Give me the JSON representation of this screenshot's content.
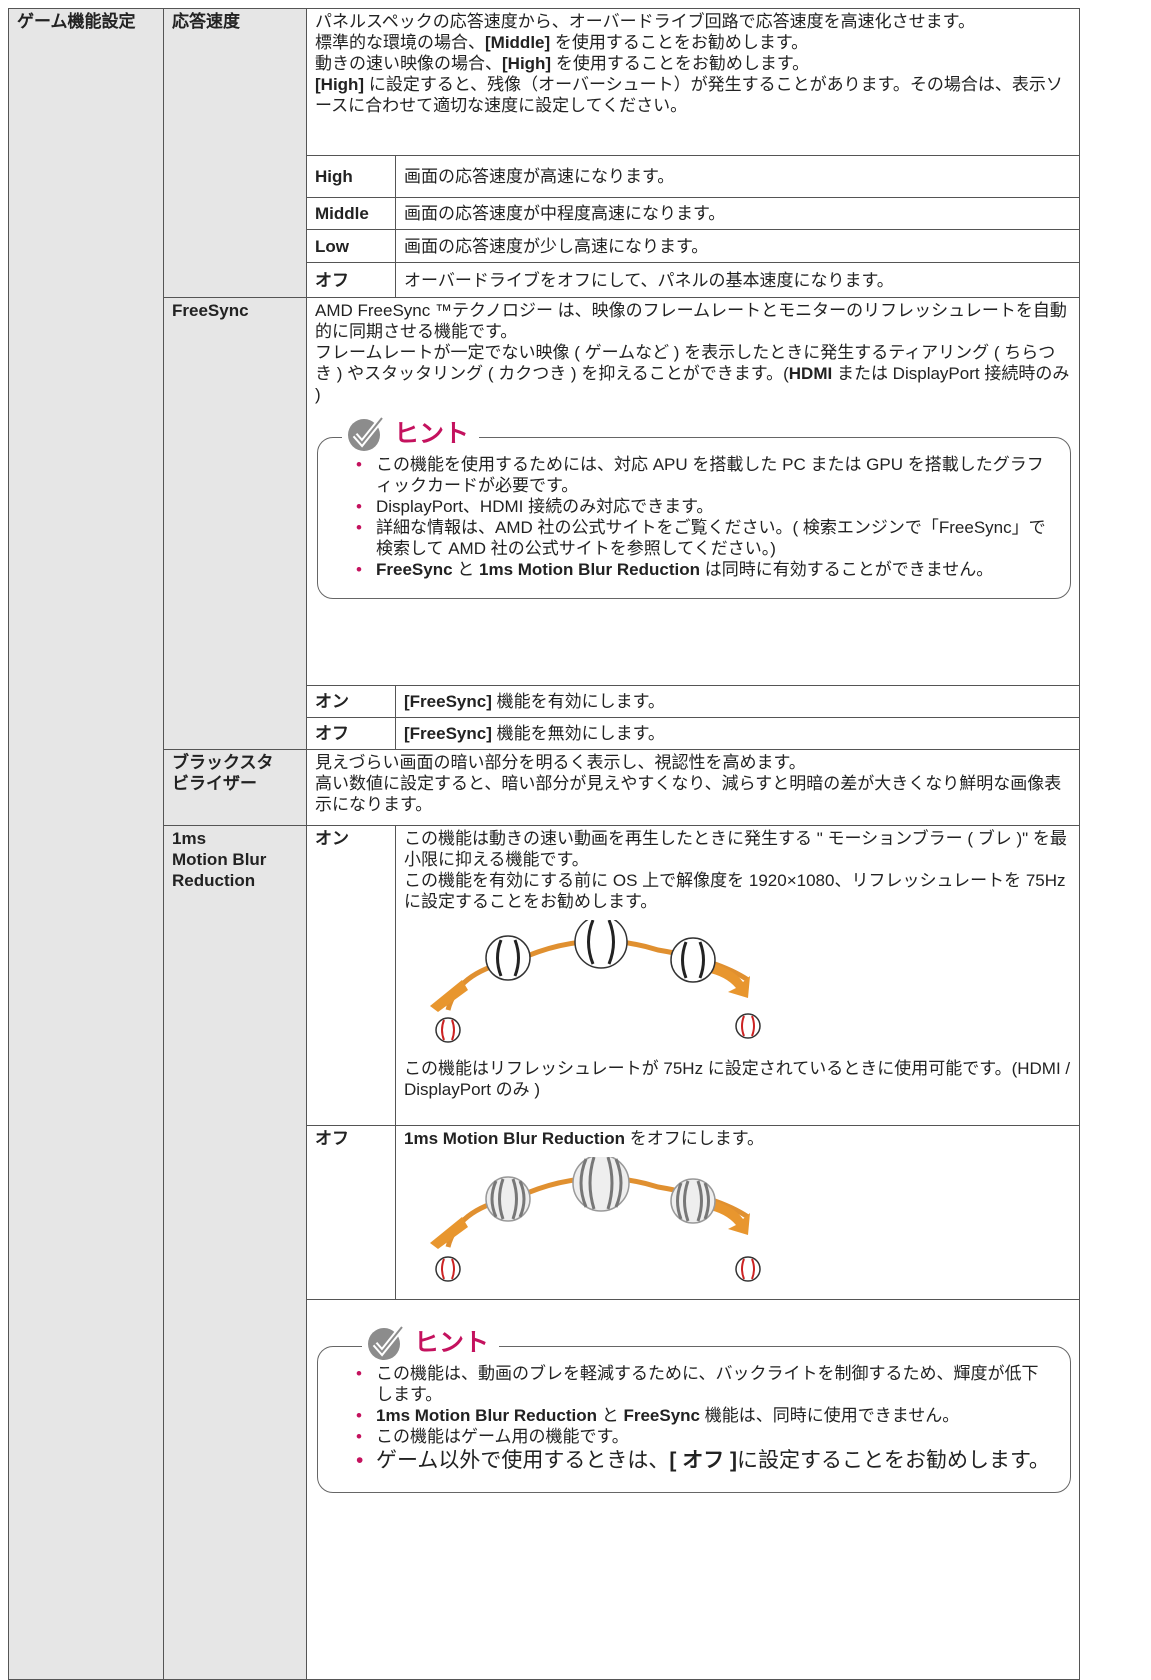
{
  "table": {
    "section": "ゲーム機能設定",
    "rows": [
      {
        "label": "応答速度",
        "description": [
          [
            "パネルスペックの応答速度から、オーバードライブ回路で応答速度を高速化させます。"
          ],
          [
            "標準的な環境の場合、",
            {
              "bold": "[Middle]"
            },
            " を使用することをお勧めします。"
          ],
          [
            "動きの速い映像の場合、",
            {
              "bold": "[High]"
            },
            " を使用することをお勧めします。"
          ],
          [
            {
              "bold": "[High]"
            },
            " に設定すると、残像（オーバーシュート）が発生することがあります。その場合は、表示ソースに合わせて適切な速度に設定してください。"
          ]
        ],
        "options": [
          {
            "name": "High",
            "description": [
              [
                "画面の応答速度が高速になります。"
              ]
            ]
          },
          {
            "name": "Middle",
            "description": [
              [
                "画面の応答速度が中程度高速になります。"
              ]
            ]
          },
          {
            "name": "Low",
            "description": [
              [
                "画面の応答速度が少し高速になります。"
              ]
            ]
          },
          {
            "name": "オフ",
            "description": [
              [
                "オーバードライブをオフにして、パネルの基本速度になります。"
              ]
            ]
          }
        ]
      },
      {
        "label": "FreeSync",
        "description": [
          [
            "AMD FreeSync ™テクノロジー は、映像のフレームレートとモニターのリフレッシュレートを自動的に同期させる機能です。"
          ],
          [
            "フレームレートが一定でない映像 ( ゲームなど ) を表示したときに発生するティアリング ( ちらつき ) やスタッタリング ( カクつき ) を抑えることができます。(",
            {
              "bold": "HDMI"
            },
            " または DisplayPort 接続時のみ )"
          ]
        ],
        "hint": {
          "title": "ヒント",
          "items": [
            [
              "この機能を使用するためには、対応 APU を搭載した PC または GPU を搭載したグラフィックカードが必要です。"
            ],
            [
              "DisplayPort、HDMI 接続のみ対応できます。"
            ],
            [
              "詳細な情報は、AMD 社の公式サイトをご覧ください。( 検索エンジンで「FreeSync」で検索して AMD 社の公式サイトを参照してください。)"
            ],
            [
              {
                "bold": "FreeSync"
              },
              " と ",
              {
                "bold": "1ms Motion Blur Reduction"
              },
              " は同時に有効することができません。"
            ]
          ]
        },
        "options": [
          {
            "name": "オン",
            "description": [
              [
                {
                  "bold": "[FreeSync]"
                },
                " 機能を有効にします。"
              ]
            ]
          },
          {
            "name": "オフ",
            "description": [
              [
                {
                  "bold": "[FreeSync]"
                },
                " 機能を無効にします。"
              ]
            ]
          }
        ]
      },
      {
        "label": "ブラックスタビライザー",
        "description": [
          [
            "見えづらい画面の暗い部分を明るく表示し、視認性を高めます。"
          ],
          [
            "高い数値に設定すると、暗い部分が見えやすくなり、減らすと明暗の差が大きくなり鮮明な画像表示になります。"
          ]
        ]
      },
      {
        "label": [
          "1ms",
          "Motion Blur",
          "Reduction"
        ],
        "options": [
          {
            "name": "オン",
            "description": [
              [
                "この機能は動きの速い動画を再生したときに発生する \" モーションブラー ( ブレ )\" を最小限に抑える機能です。"
              ],
              [
                "この機能を有効にする前に OS 上で解像度を 1920×1080、リフレッシュレートを 75Hz に設定することをお勧めします。"
              ]
            ],
            "note": [
              [
                "この機能はリフレッシュレートが 75Hz に設定されているときに使用可能です。(HDMI / DisplayPort のみ )"
              ]
            ]
          },
          {
            "name": "オフ",
            "description": [
              [
                {
                  "bold": "1ms Motion Blur Reduction"
                },
                " をオフにします。"
              ]
            ]
          }
        ],
        "hint": {
          "title": "ヒント",
          "items": [
            [
              "この機能は、動画のブレを軽減するために、バックライトを制御するため、輝度が低下します。"
            ],
            [
              {
                "bold": "1ms Motion Blur Reduction"
              },
              " と ",
              {
                "bold": "FreeSync"
              },
              " 機能は、同時に使用できません。"
            ],
            [
              "この機能はゲーム用の機能です。"
            ],
            [
              "ゲーム以外で使用するときは、",
              {
                "bold": "[ オフ ]"
              },
              "に設定することをお勧めします。"
            ]
          ]
        }
      }
    ]
  }
}
